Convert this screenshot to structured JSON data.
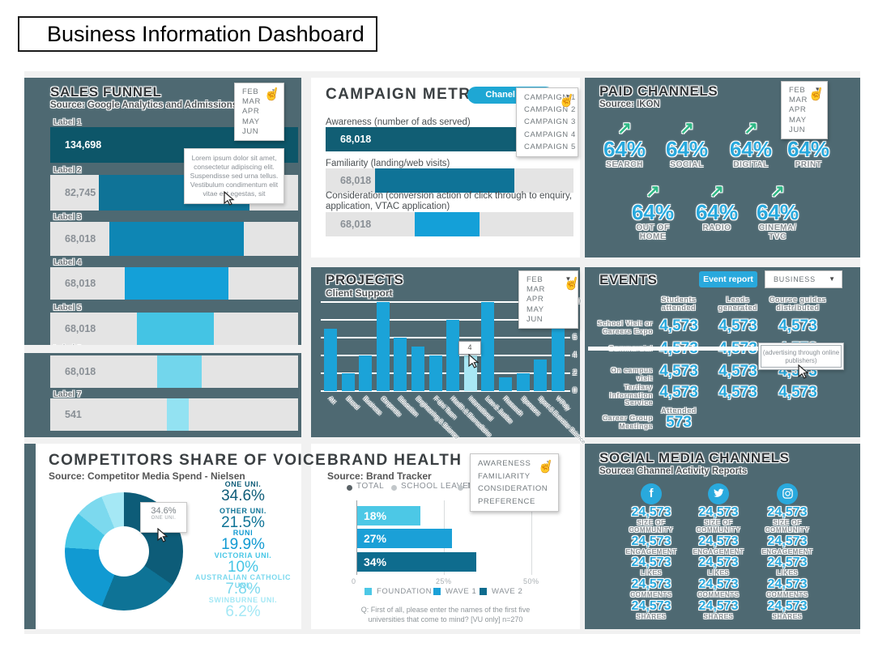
{
  "page": {
    "title": "Business Information Dashboard"
  },
  "sales_funnel": {
    "title": "SALES FUNNEL",
    "source": "Source: Google Analytics and Admissions data",
    "months": [
      "FEB",
      "MAR",
      "APR",
      "MAY",
      "JUN"
    ],
    "tooltip": "Lorem ipsum dolor sit amet, consectetur adipiscing elit. Suspendisse sed urna tellus. Vestibulum condimentum elit vitae est egestas, sit",
    "rows": [
      {
        "label": "Label 1",
        "value": "134,698",
        "offset_pct": 0,
        "width_pct": 100,
        "color": "#0d5669",
        "value_color": "#ffffff"
      },
      {
        "label": "Label 2",
        "value": "82,745",
        "offset_pct": 19.5,
        "width_pct": 61,
        "color": "#0f7397",
        "value_color": "#8a9096"
      },
      {
        "label": "Label 3",
        "value": "68,018",
        "offset_pct": 24,
        "width_pct": 54,
        "color": "#0e86b4",
        "value_color": "#8a9096"
      },
      {
        "label": "Label 4",
        "value": "68,018",
        "offset_pct": 30,
        "width_pct": 42,
        "color": "#14a0d8",
        "value_color": "#8a9096"
      },
      {
        "label": "Label 5",
        "value": "68,018",
        "offset_pct": 35,
        "width_pct": 31,
        "color": "#44c4e4",
        "value_color": "#8a9096"
      },
      {
        "label": "Label 6",
        "value": "68,018",
        "offset_pct": 43,
        "width_pct": 18,
        "color": "#72d6ec",
        "value_color": "#8a9096"
      },
      {
        "label": "Label 7",
        "value": "541",
        "offset_pct": 47,
        "width_pct": 9,
        "color": "#93e2f2",
        "value_color": "#8a9096"
      }
    ]
  },
  "campaign": {
    "title": "CAMPAIGN METRICS",
    "button": "Chanel data",
    "options": [
      "CAMPAIGN 1",
      "CAMPAIGN 2",
      "CAMPAIGN 3",
      "CAMPAIGN 4",
      "CAMPAIGN 5"
    ],
    "metrics": [
      {
        "label": "Awareness (number of ads served)",
        "value": "68,018",
        "offset_pct": 0,
        "width_pct": 100,
        "color": "#115e74",
        "value_color": "#ffffff"
      },
      {
        "label": "Familiarity (landing/web visits)",
        "value": "68,018",
        "offset_pct": 20,
        "width_pct": 56,
        "color": "#0f7397",
        "value_color": "#8a9096"
      },
      {
        "label": "Consideration (conversion action of click through to enquiry, application, VTAC application)",
        "value": "68,018",
        "offset_pct": 36,
        "width_pct": 26,
        "color": "#14a0d8",
        "value_color": "#8a9096"
      }
    ]
  },
  "paid": {
    "title": "PAID CHANNELS",
    "source": "Source: IKON",
    "months": [
      "FEB",
      "MAR",
      "APR",
      "MAY",
      "JUN"
    ],
    "value": "64%",
    "arrow_color": "#2eb885",
    "row1": [
      [
        "SEARCH"
      ],
      [
        "SOCIAL"
      ],
      [
        "DIGITAL"
      ],
      [
        "PRINT"
      ]
    ],
    "row2": [
      [
        "OUT OF",
        "HOME"
      ],
      [
        "RADIO"
      ],
      [
        "CINEMA/",
        "TVC"
      ]
    ]
  },
  "projects": {
    "title": "PROJECTS",
    "subtitle": "Client Support",
    "months": [
      "FEB",
      "MAR",
      "APR",
      "MAY",
      "JUN"
    ],
    "tooltip": "4",
    "categories": [
      "Art",
      "Brand",
      "Business",
      "Corporate",
      "Education",
      "Engineering & Science",
      "F-Uni Team",
      "Health & Biomedicine",
      "International",
      "Law & Justice",
      "Research",
      "Sponsors",
      "Sport & Exercise Science",
      "V-Poly"
    ],
    "values": [
      7,
      2,
      4,
      10,
      6,
      5,
      4,
      8,
      4,
      10,
      1.5,
      2,
      3.5,
      8
    ],
    "highlight_index": 8,
    "y_ticks": [
      0,
      2,
      4,
      6,
      8,
      10
    ],
    "bar_color": "#1ba3d8",
    "highlight_color": "#a8e7f4"
  },
  "events": {
    "title": "EVENTS",
    "button": "Event report",
    "filter": "BUSINESS",
    "columns": [
      [
        "Students",
        "attended"
      ],
      [
        "Leads",
        "generated"
      ],
      [
        "Course guides",
        "distributed"
      ]
    ],
    "rows": [
      {
        "label": [
          "School Visit or",
          "Careers Expo"
        ],
        "values": [
          "4,573",
          "4,573",
          "4,573"
        ]
      },
      {
        "label": [
          "Commercial"
        ],
        "values": [
          "4,573",
          "4,573",
          "4,573"
        ]
      },
      {
        "label": [
          "On campus",
          "visit"
        ],
        "values": [
          "4,573",
          "4,573",
          "4,573"
        ]
      },
      {
        "label": [
          "Tertiary",
          "Information",
          "Service"
        ],
        "values": [
          "4,573",
          "4,573",
          "4,573"
        ]
      }
    ],
    "last_row": {
      "label": [
        "Career Group",
        "Meetings"
      ],
      "header": "Attended",
      "value": "573"
    },
    "tooltip": "(advertising through online publishers)"
  },
  "competitors": {
    "title": "COMPETITORS SHARE OF VOICE",
    "source": "Source: Competitor Media Spend - Nielsen",
    "tooltip_value": "34.6%",
    "tooltip_label": "ONE UNI.",
    "slices": [
      {
        "label": "ONE UNI.",
        "value": "34.6%",
        "pct": 34.6,
        "color": "#0d5c78"
      },
      {
        "label": "OTHER UNI.",
        "value": "21.5%",
        "pct": 21.5,
        "color": "#0e7396"
      },
      {
        "label": "RUNI",
        "value": "19.9%",
        "pct": 19.9,
        "color": "#119ad2"
      },
      {
        "label": "VICTORIA UNI.",
        "value": "10%",
        "pct": 10,
        "color": "#45c6e6"
      },
      {
        "label": "AUSTRALIAN CATHOLIC UNI.",
        "value": "7.8%",
        "pct": 7.8,
        "color": "#7cd9ee"
      },
      {
        "label": "SWINBURNE UNI.",
        "value": "6.2%",
        "pct": 6.2,
        "color": "#a5e8f5"
      }
    ]
  },
  "brand": {
    "title": "BRAND HEALTH",
    "source": "Source: Brand Tracker",
    "radios": [
      {
        "label": "TOTAL",
        "selected": true
      },
      {
        "label": "SCHOOL LEAVERS",
        "selected": false
      },
      {
        "label": "N",
        "selected": false
      }
    ],
    "options": [
      "AWARENESS",
      "FAMILIARITY",
      "CONSIDERATION",
      "PREFERENCE"
    ],
    "bars": [
      {
        "name": "FOUNDATION",
        "value": "18%",
        "pct": 18,
        "color": "#4cc8e6"
      },
      {
        "name": "WAVE 1",
        "value": "27%",
        "pct": 27,
        "color": "#1ba0d7"
      },
      {
        "name": "WAVE 2",
        "value": "34%",
        "pct": 34,
        "color": "#0e6c8e"
      }
    ],
    "x_ticks": [
      "0",
      "25%",
      "50%"
    ],
    "footnote": [
      "Q: First of all, please enter the names of the first five",
      "universities that come to mind? [VU only] n=270"
    ]
  },
  "social": {
    "title": "SOCIAL MEDIA CHANNELS",
    "source": "Source: Channel Activity Reports",
    "channels": [
      "facebook",
      "twitter",
      "instagram"
    ],
    "metrics": [
      {
        "value": "24,573",
        "label": [
          "SIZE OF",
          "COMMUNITY"
        ]
      },
      {
        "value": "24,573",
        "label": [
          "ENGAGEMENT"
        ]
      },
      {
        "value": "24,573",
        "label": [
          "LIKES"
        ]
      },
      {
        "value": "24,573",
        "label": [
          "COMMENTS"
        ]
      },
      {
        "value": "24,573",
        "label": [
          "SHARES"
        ]
      }
    ]
  },
  "chart_data": [
    {
      "type": "bar",
      "title": "SALES FUNNEL",
      "orientation": "horizontal",
      "categories": [
        "Label 1",
        "Label 2",
        "Label 3",
        "Label 4",
        "Label 5",
        "Label 6",
        "Label 7"
      ],
      "values": [
        134698,
        82745,
        68018,
        68018,
        68018,
        68018,
        541
      ]
    },
    {
      "type": "bar",
      "title": "CAMPAIGN METRICS",
      "orientation": "horizontal",
      "categories": [
        "Awareness (number of ads served)",
        "Familiarity (landing/web visits)",
        "Consideration (conversion action of click through to enquiry, application, VTAC application)"
      ],
      "values": [
        68018,
        68018,
        68018
      ]
    },
    {
      "type": "bar",
      "title": "PROJECTS - Client Support",
      "categories": [
        "Art",
        "Brand",
        "Business",
        "Corporate",
        "Education",
        "Engineering & Science",
        "F-Uni Team",
        "Health & Biomedicine",
        "International",
        "Law & Justice",
        "Research",
        "Sponsors",
        "Sport & Exercise Science",
        "V-Poly"
      ],
      "values": [
        7,
        2,
        4,
        10,
        6,
        5,
        4,
        8,
        4,
        10,
        1.5,
        2,
        3.5,
        8
      ],
      "ylim": [
        0,
        10
      ],
      "highlight": "International"
    },
    {
      "type": "pie",
      "title": "COMPETITORS SHARE OF VOICE",
      "labels": [
        "ONE UNI.",
        "OTHER UNI.",
        "RUNI",
        "VICTORIA UNI.",
        "AUSTRALIAN CATHOLIC UNI.",
        "SWINBURNE UNI."
      ],
      "values": [
        34.6,
        21.5,
        19.9,
        10,
        7.8,
        6.2
      ]
    },
    {
      "type": "bar",
      "title": "BRAND HEALTH",
      "orientation": "horizontal",
      "categories": [
        "FOUNDATION",
        "WAVE 1",
        "WAVE 2"
      ],
      "values": [
        18,
        27,
        34
      ],
      "xlim": [
        0,
        50
      ],
      "x_ticks": [
        "0",
        "25%",
        "50%"
      ]
    }
  ]
}
